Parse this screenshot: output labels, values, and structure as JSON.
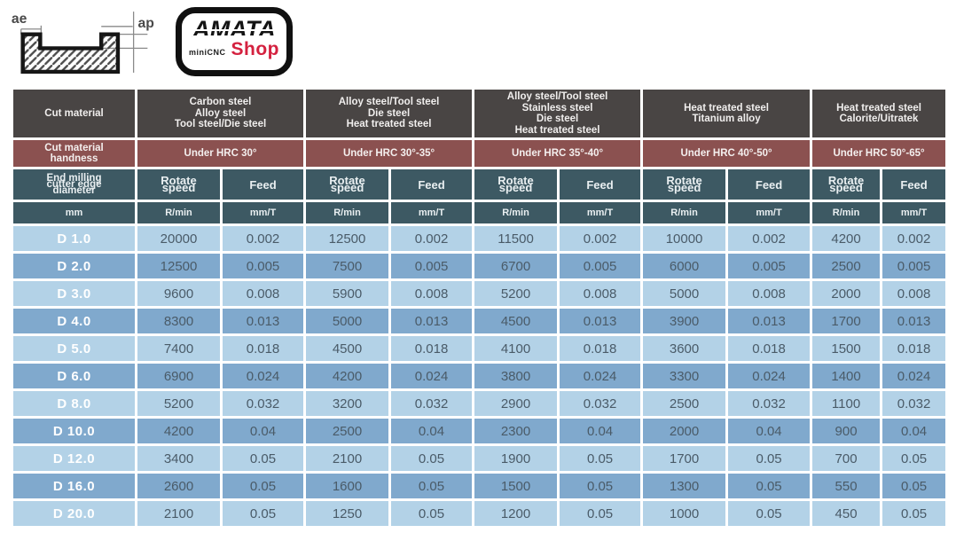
{
  "diagram": {
    "ae_label": "ae",
    "ap_label": "ap"
  },
  "logo": {
    "brand": "AMATA",
    "sub": "miniCNC",
    "shop": "Shop"
  },
  "colors": {
    "header_dark": "#494544",
    "header_maroon": "#8b5150",
    "header_teal": "#3d5963",
    "row_light": "#b3d2e7",
    "row_dark": "#80a9cd",
    "shop_red": "#d4213f",
    "data_text": "#4a5b68"
  },
  "table": {
    "cut_material_header": "Cut material",
    "hardness_header_lines": [
      "Cut material",
      "handness"
    ],
    "diameter_header_lines": [
      "End milling",
      "cutter edge",
      "diameter"
    ],
    "rotate_header_lines": [
      "Rotate",
      "speed"
    ],
    "feed_header": "Feed",
    "units": {
      "diameter": "mm",
      "rotate": "R/min",
      "feed": "mm/T"
    },
    "groups": [
      {
        "material_lines": [
          "Carbon steel",
          "Alloy steel",
          "Tool steel/Die steel"
        ],
        "hardness": "Under HRC 30°"
      },
      {
        "material_lines": [
          "Alloy steel/Tool steel",
          "Die steel",
          "Heat treated steel"
        ],
        "hardness": "Under HRC 30°-35°"
      },
      {
        "material_lines": [
          "Alloy steel/Tool steel",
          "Stainless steel",
          "Die steel",
          "Heat treated steel"
        ],
        "hardness": "Under HRC 35°-40°"
      },
      {
        "material_lines": [
          "Heat treated steel",
          "Titanium alloy"
        ],
        "hardness": "Under HRC 40°-50°"
      },
      {
        "material_lines": [
          "Heat treated steel",
          "Calorite/Uitratek"
        ],
        "hardness": "Under HRC 50°-65°"
      }
    ],
    "rows": [
      {
        "d": "D 1.0",
        "values": [
          "20000",
          "0.002",
          "12500",
          "0.002",
          "11500",
          "0.002",
          "10000",
          "0.002",
          "4200",
          "0.002"
        ]
      },
      {
        "d": "D 2.0",
        "values": [
          "12500",
          "0.005",
          "7500",
          "0.005",
          "6700",
          "0.005",
          "6000",
          "0.005",
          "2500",
          "0.005"
        ]
      },
      {
        "d": "D 3.0",
        "values": [
          "9600",
          "0.008",
          "5900",
          "0.008",
          "5200",
          "0.008",
          "5000",
          "0.008",
          "2000",
          "0.008"
        ]
      },
      {
        "d": "D 4.0",
        "values": [
          "8300",
          "0.013",
          "5000",
          "0.013",
          "4500",
          "0.013",
          "3900",
          "0.013",
          "1700",
          "0.013"
        ]
      },
      {
        "d": "D 5.0",
        "values": [
          "7400",
          "0.018",
          "4500",
          "0.018",
          "4100",
          "0.018",
          "3600",
          "0.018",
          "1500",
          "0.018"
        ]
      },
      {
        "d": "D 6.0",
        "values": [
          "6900",
          "0.024",
          "4200",
          "0.024",
          "3800",
          "0.024",
          "3300",
          "0.024",
          "1400",
          "0.024"
        ]
      },
      {
        "d": "D 8.0",
        "values": [
          "5200",
          "0.032",
          "3200",
          "0.032",
          "2900",
          "0.032",
          "2500",
          "0.032",
          "1100",
          "0.032"
        ]
      },
      {
        "d": "D 10.0",
        "values": [
          "4200",
          "0.04",
          "2500",
          "0.04",
          "2300",
          "0.04",
          "2000",
          "0.04",
          "900",
          "0.04"
        ]
      },
      {
        "d": "D 12.0",
        "values": [
          "3400",
          "0.05",
          "2100",
          "0.05",
          "1900",
          "0.05",
          "1700",
          "0.05",
          "700",
          "0.05"
        ]
      },
      {
        "d": "D 16.0",
        "values": [
          "2600",
          "0.05",
          "1600",
          "0.05",
          "1500",
          "0.05",
          "1300",
          "0.05",
          "550",
          "0.05"
        ]
      },
      {
        "d": "D 20.0",
        "values": [
          "2100",
          "0.05",
          "1250",
          "0.05",
          "1200",
          "0.05",
          "1000",
          "0.05",
          "450",
          "0.05"
        ]
      }
    ]
  }
}
